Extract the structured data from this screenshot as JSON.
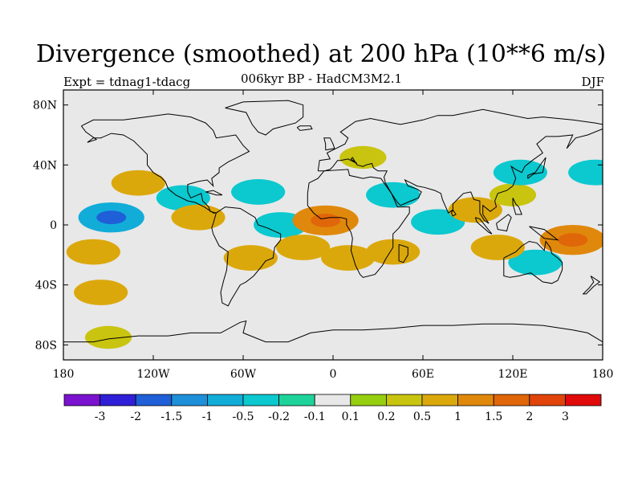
{
  "title": "Divergence (smoothed) at 200 hPa (10**6 m/s)",
  "subtitle_left": "Expt = tdnag1-tdacg",
  "subtitle_center": "006kyr BP - HadCM3M2.1",
  "subtitle_right": "DJF",
  "map": {
    "projection": "cylindrical equidistant",
    "lon_range": [
      -180,
      180
    ],
    "lat_range": [
      -90,
      90
    ],
    "land_color": "#e8e8e8",
    "coastline_color": "#000000",
    "x_ticks": [
      {
        "lon": -180,
        "label": "180"
      },
      {
        "lon": -120,
        "label": "120W"
      },
      {
        "lon": -60,
        "label": "60W"
      },
      {
        "lon": 0,
        "label": "0"
      },
      {
        "lon": 60,
        "label": "60E"
      },
      {
        "lon": 120,
        "label": "120E"
      },
      {
        "lon": 180,
        "label": "180"
      }
    ],
    "y_ticks": [
      {
        "lat": 80,
        "label": "80N"
      },
      {
        "lat": 40,
        "label": "40N"
      },
      {
        "lat": 0,
        "label": "0"
      },
      {
        "lat": -40,
        "label": "40S"
      },
      {
        "lat": -80,
        "label": "80S"
      }
    ]
  },
  "chart_data": {
    "type": "heatmap",
    "title": "Divergence (smoothed) at 200 hPa (10**6 m/s)",
    "units": "10**6 m/s",
    "colorbar": {
      "labels": [
        "-3",
        "-2",
        "-1.5",
        "-1",
        "-0.5",
        "-0.2",
        "-0.1",
        "0.1",
        "0.2",
        "0.5",
        "1",
        "1.5",
        "2",
        "3"
      ],
      "colors": [
        "#7a12cf",
        "#2f1fd6",
        "#1f5fd8",
        "#1e8fd9",
        "#12acd9",
        "#0cc8cf",
        "#1ed39a",
        "#e8e8e8",
        "#96cf10",
        "#c9c40f",
        "#dba80c",
        "#e0880b",
        "#e0660a",
        "#e0440a",
        "#e00a0a"
      ]
    },
    "regions": [
      {
        "lon": -148,
        "lat": 5,
        "value": -1
      },
      {
        "lon": -160,
        "lat": -18,
        "value": 0.5
      },
      {
        "lon": -130,
        "lat": 28,
        "value": 0.5
      },
      {
        "lon": -100,
        "lat": 18,
        "value": -0.5
      },
      {
        "lon": -90,
        "lat": 5,
        "value": 0.5
      },
      {
        "lon": -50,
        "lat": 22,
        "value": -0.5
      },
      {
        "lon": -55,
        "lat": -22,
        "value": 0.5
      },
      {
        "lon": -35,
        "lat": 0,
        "value": -0.5
      },
      {
        "lon": -5,
        "lat": 3,
        "value": 1
      },
      {
        "lon": 10,
        "lat": -22,
        "value": 0.5
      },
      {
        "lon": 40,
        "lat": 20,
        "value": -0.5
      },
      {
        "lon": 40,
        "lat": -18,
        "value": 0.5
      },
      {
        "lon": 70,
        "lat": 2,
        "value": -0.5
      },
      {
        "lon": 95,
        "lat": 10,
        "value": 0.5
      },
      {
        "lon": 120,
        "lat": 20,
        "value": 0.2
      },
      {
        "lon": 125,
        "lat": 35,
        "value": -0.5
      },
      {
        "lon": 135,
        "lat": -25,
        "value": -0.5
      },
      {
        "lon": 110,
        "lat": -15,
        "value": 0.5
      },
      {
        "lon": 160,
        "lat": -10,
        "value": 1
      },
      {
        "lon": 175,
        "lat": 35,
        "value": -0.5
      },
      {
        "lon": -155,
        "lat": -45,
        "value": 0.5
      },
      {
        "lon": -150,
        "lat": -75,
        "value": 0.2
      },
      {
        "lon": -20,
        "lat": -15,
        "value": 0.5
      },
      {
        "lon": 20,
        "lat": 45,
        "value": 0.2
      }
    ]
  }
}
